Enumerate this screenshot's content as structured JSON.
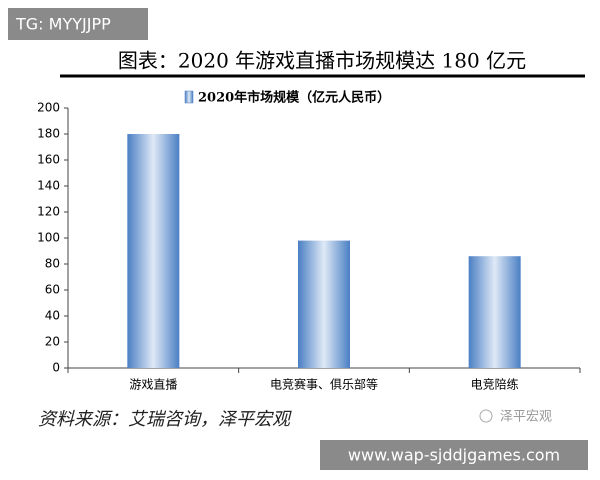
{
  "overlay_top": "TG: MYYJJPP",
  "chart_data": {
    "type": "bar",
    "title": "图表：2020 年游戏直播市场规模达 180 亿元",
    "categories": [
      "游戏直播",
      "电竞赛事、俱乐部等",
      "电竞陪练"
    ],
    "series": [
      {
        "name": "2020年市场规模（亿元人民币）",
        "color": "#4a7fc4",
        "values": [
          180,
          98,
          86
        ]
      }
    ],
    "ylim": [
      0,
      200
    ],
    "yticks": [
      0,
      20,
      40,
      60,
      80,
      100,
      120,
      140,
      160,
      180,
      200
    ],
    "grid": false,
    "source": "资料来源：艾瑞咨询，泽平宏观"
  },
  "logo_text": "泽平宏观",
  "overlay_bottom": "www.wap-sjddjgames.com"
}
